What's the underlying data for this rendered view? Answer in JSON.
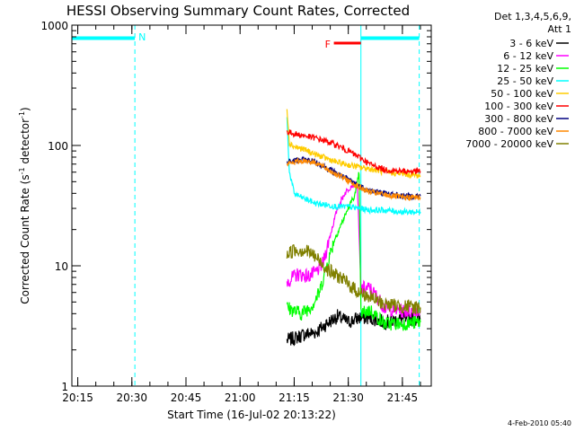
{
  "chart_data": {
    "type": "line",
    "title": "HESSI Observing Summary Count Rates, Corrected",
    "xlabel": "Start Time (16-Jul-02 20:13:22)",
    "ylabel_main": "Corrected Count Rate (s",
    "ylabel_sup1": "-1",
    "ylabel_mid": " detector",
    "ylabel_sup2": "-1",
    "ylabel_end": ")",
    "y_scale": "log",
    "ylim": [
      1,
      1000
    ],
    "xlim": [
      "20:13:22",
      "21:53:00"
    ],
    "x_ticks": [
      "20:15",
      "20:30",
      "20:45",
      "21:00",
      "21:15",
      "21:30",
      "21:45"
    ],
    "y_ticks": [
      "1",
      "10",
      "100",
      "1000"
    ],
    "legend_header": [
      "Det 1,3,4,5,6,9,",
      "Att 1"
    ],
    "timestamp": "4-Feb-2010 05:40",
    "annotations": [
      {
        "label": "N",
        "color": "#00ffff",
        "x_start": "20:13:22",
        "x_end": "20:30:50"
      },
      {
        "label": "F",
        "color": "#ff0000",
        "x_start": "21:26:00",
        "x_end": "21:33:30"
      }
    ],
    "vlines": [
      {
        "x": "20:30:50",
        "color": "#00ffff",
        "style": "dashed"
      },
      {
        "x": "21:33:30",
        "color": "#00ffff",
        "style": "solid"
      },
      {
        "x": "21:49:40",
        "color": "#00ffff",
        "style": "dashed"
      }
    ],
    "day_bars": [
      {
        "color": "#00ffff",
        "x_start": "20:13:22",
        "x_end": "20:30:50",
        "y": 780
      },
      {
        "color": "#00ffff",
        "x_start": "21:33:30",
        "x_end": "21:49:40",
        "y": 780
      }
    ],
    "series": [
      {
        "name": "3 - 6 keV",
        "color": "#000000",
        "points": [
          [
            "21:13:00",
            2.4
          ],
          [
            "21:15:00",
            2.5
          ],
          [
            "21:18:00",
            2.7
          ],
          [
            "21:21:00",
            2.8
          ],
          [
            "21:24:00",
            3.3
          ],
          [
            "21:27:00",
            3.8
          ],
          [
            "21:30:00",
            3.4
          ],
          [
            "21:33:00",
            3.7
          ],
          [
            "21:36:00",
            3.7
          ],
          [
            "21:40:00",
            3.4
          ],
          [
            "21:45:00",
            3.6
          ],
          [
            "21:50:00",
            3.6
          ]
        ]
      },
      {
        "name": "6 - 12 keV",
        "color": "#ff00ff",
        "points": [
          [
            "21:13:00",
            7.4
          ],
          [
            "21:16:00",
            8.5
          ],
          [
            "21:19:00",
            8.2
          ],
          [
            "21:21:00",
            8.8
          ],
          [
            "21:23:00",
            10.5
          ],
          [
            "21:25:00",
            18
          ],
          [
            "21:27:00",
            30
          ],
          [
            "21:29:00",
            40
          ],
          [
            "21:31:00",
            47
          ],
          [
            "21:32:30",
            48
          ],
          [
            "21:33:30",
            6.5
          ],
          [
            "21:36:00",
            6.5
          ],
          [
            "21:38:00",
            5.5
          ],
          [
            "21:40:00",
            4.5
          ],
          [
            "21:45:00",
            4.2
          ],
          [
            "21:50:00",
            4.2
          ]
        ]
      },
      {
        "name": "12 - 25 keV",
        "color": "#00ff00",
        "points": [
          [
            "21:13:00",
            4.5
          ],
          [
            "21:17:00",
            4.0
          ],
          [
            "21:20:00",
            4.7
          ],
          [
            "21:22:00",
            6.0
          ],
          [
            "21:24:00",
            10
          ],
          [
            "21:26:00",
            16
          ],
          [
            "21:28:00",
            22
          ],
          [
            "21:30:00",
            30
          ],
          [
            "21:32:00",
            40
          ],
          [
            "21:33:00",
            60
          ],
          [
            "21:33:30",
            4.0
          ],
          [
            "21:36:00",
            4.3
          ],
          [
            "21:40:00",
            3.3
          ],
          [
            "21:45:00",
            3.3
          ],
          [
            "21:50:00",
            3.4
          ]
        ]
      },
      {
        "name": "25 - 50 keV",
        "color": "#00ffff",
        "points": [
          [
            "21:13:00",
            170
          ],
          [
            "21:13:40",
            60
          ],
          [
            "21:15:00",
            40
          ],
          [
            "21:17:00",
            37
          ],
          [
            "21:19:00",
            35
          ],
          [
            "21:21:00",
            33
          ],
          [
            "21:24:00",
            32
          ],
          [
            "21:27:00",
            31
          ],
          [
            "21:30:00",
            31
          ],
          [
            "21:33:00",
            30
          ],
          [
            "21:36:00",
            29
          ],
          [
            "21:40:00",
            29
          ],
          [
            "21:45:00",
            28
          ],
          [
            "21:50:00",
            28
          ]
        ]
      },
      {
        "name": "50 - 100 keV",
        "color": "#ffcc00",
        "points": [
          [
            "21:13:00",
            210
          ],
          [
            "21:13:40",
            105
          ],
          [
            "21:15:00",
            98
          ],
          [
            "21:18:00",
            92
          ],
          [
            "21:21:00",
            84
          ],
          [
            "21:24:00",
            78
          ],
          [
            "21:27:00",
            72
          ],
          [
            "21:30:00",
            69
          ],
          [
            "21:33:00",
            66
          ],
          [
            "21:36:00",
            64
          ],
          [
            "21:40:00",
            60
          ],
          [
            "21:45:00",
            58
          ],
          [
            "21:50:00",
            56
          ]
        ]
      },
      {
        "name": "100 - 300 keV",
        "color": "#ff0000",
        "points": [
          [
            "21:13:00",
            130
          ],
          [
            "21:15:00",
            125
          ],
          [
            "21:18:00",
            120
          ],
          [
            "21:21:00",
            115
          ],
          [
            "21:24:00",
            108
          ],
          [
            "21:27:00",
            100
          ],
          [
            "21:30:00",
            90
          ],
          [
            "21:33:00",
            80
          ],
          [
            "21:36:00",
            70
          ],
          [
            "21:40:00",
            63
          ],
          [
            "21:45:00",
            61
          ],
          [
            "21:50:00",
            61
          ]
        ]
      },
      {
        "name": "300 - 800 keV",
        "color": "#000080",
        "points": [
          [
            "21:13:00",
            72
          ],
          [
            "21:15:00",
            75
          ],
          [
            "21:18:00",
            76
          ],
          [
            "21:21:00",
            73
          ],
          [
            "21:24:00",
            65
          ],
          [
            "21:27:00",
            58
          ],
          [
            "21:30:00",
            52
          ],
          [
            "21:33:00",
            46
          ],
          [
            "21:36:00",
            42
          ],
          [
            "21:40:00",
            40
          ],
          [
            "21:45:00",
            38
          ],
          [
            "21:50:00",
            38
          ]
        ]
      },
      {
        "name": "800 - 7000 keV",
        "color": "#ff8800",
        "points": [
          [
            "21:13:00",
            70
          ],
          [
            "21:15:00",
            73
          ],
          [
            "21:18:00",
            75
          ],
          [
            "21:21:00",
            72
          ],
          [
            "21:24:00",
            64
          ],
          [
            "21:27:00",
            57
          ],
          [
            "21:30:00",
            51
          ],
          [
            "21:33:00",
            45
          ],
          [
            "21:36:00",
            41
          ],
          [
            "21:40:00",
            39
          ],
          [
            "21:45:00",
            37
          ],
          [
            "21:50:00",
            37
          ]
        ]
      },
      {
        "name": "7000 - 20000 keV",
        "color": "#808000",
        "points": [
          [
            "21:13:00",
            12.5
          ],
          [
            "21:15:00",
            13.5
          ],
          [
            "21:18:00",
            13.5
          ],
          [
            "21:20:00",
            12.5
          ],
          [
            "21:22:00",
            11
          ],
          [
            "21:24:00",
            9.5
          ],
          [
            "21:26:00",
            8.5
          ],
          [
            "21:28:00",
            8.0
          ],
          [
            "21:30:00",
            7.0
          ],
          [
            "21:33:00",
            6.0
          ],
          [
            "21:36:00",
            5.5
          ],
          [
            "21:40:00",
            4.8
          ],
          [
            "21:45:00",
            4.6
          ],
          [
            "21:50:00",
            4.5
          ]
        ]
      }
    ]
  }
}
